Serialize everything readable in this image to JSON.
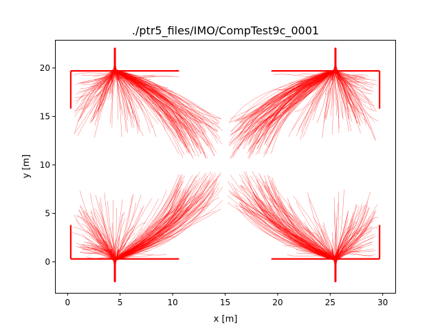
{
  "chart_data": {
    "type": "line",
    "title": "./ptr5_files/IMO/CompTest9c_0001",
    "xlabel": "x [m]",
    "ylabel": "y [m]",
    "xlim": [
      -1.2,
      31.2
    ],
    "ylim": [
      -3.2,
      22.9
    ],
    "xticks": [
      0,
      5,
      10,
      15,
      20,
      25,
      30
    ],
    "yticks": [
      0,
      5,
      10,
      15,
      20
    ],
    "xtick_labels": [
      "0",
      "5",
      "10",
      "15",
      "20",
      "25",
      "30"
    ],
    "ytick_labels": [
      "0",
      "5",
      "10",
      "15",
      "20"
    ],
    "grid": false,
    "series_color": "#ff0000",
    "description_note": "",
    "rooms": [
      {
        "x0": 0.3,
        "x1": 10.6,
        "y_wall": 19.7,
        "y_inner": 15.8,
        "exit_x": 4.5,
        "exit_y_far": 22.0
      },
      {
        "x0": 19.4,
        "x1": 29.7,
        "y_wall": 19.7,
        "y_inner": 15.8,
        "exit_x": 25.5,
        "exit_y_far": 22.0
      },
      {
        "x0": 0.3,
        "x1": 10.6,
        "y_wall": 0.3,
        "y_inner": 3.8,
        "exit_x": 4.5,
        "exit_y_far": -2.0
      },
      {
        "x0": 19.4,
        "x1": 29.7,
        "y_wall": 0.3,
        "y_inner": 3.8,
        "exit_x": 25.5,
        "exit_y_far": -2.0
      }
    ]
  }
}
